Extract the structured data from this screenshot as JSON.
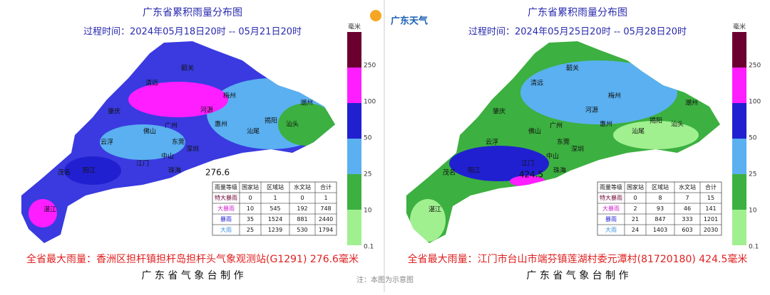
{
  "logo": "广东天气",
  "note": "注：本图为示意图",
  "panels": [
    {
      "title": "广东省累积雨量分布图",
      "period": "过程时间：2024年05月18日20时  -- 05月21日20时",
      "unit": "毫米",
      "legend": [
        "250",
        "100",
        "50",
        "25",
        "10",
        "0.1"
      ],
      "table": {
        "header": [
          "雨量等级",
          "国家站",
          "区域站",
          "水文站",
          "合计"
        ],
        "rows": [
          [
            "特大暴雨",
            "0",
            "1",
            "0",
            "1"
          ],
          [
            "大暴雨",
            "10",
            "545",
            "192",
            "748"
          ],
          [
            "暴雨",
            "35",
            "1524",
            "881",
            "2440"
          ],
          [
            "大雨",
            "25",
            "1239",
            "530",
            "1794"
          ]
        ]
      },
      "max_label": "276.6",
      "max_text": "全省最大雨量：香洲区担杆镇担杆岛担杆头气象观测站(G1291) 276.6毫米",
      "footer": "广 东 省 气 象 台 制 作",
      "cities": [
        "韶关",
        "清远",
        "梅州",
        "河源",
        "潮州",
        "肇庆",
        "广州",
        "惠州",
        "揭阳",
        "汕头",
        "云浮",
        "佛山",
        "东莞",
        "汕尾",
        "深圳",
        "江门",
        "中山",
        "珠海",
        "阳江",
        "茂名",
        "湛江"
      ]
    },
    {
      "title": "广东省累积雨量分布图",
      "period": "过程时间：2024年05月25日20时  -- 05月28日20时",
      "unit": "毫米",
      "legend": [
        "250",
        "100",
        "50",
        "25",
        "10",
        "0.1"
      ],
      "table": {
        "header": [
          "雨量等级",
          "国家站",
          "区域站",
          "水文站",
          "合计"
        ],
        "rows": [
          [
            "特大暴雨",
            "0",
            "8",
            "7",
            "15"
          ],
          [
            "大暴雨",
            "2",
            "93",
            "46",
            "141"
          ],
          [
            "暴雨",
            "21",
            "847",
            "333",
            "1201"
          ],
          [
            "大雨",
            "24",
            "1403",
            "603",
            "2030"
          ]
        ]
      },
      "max_label": "424.5",
      "max_text": "全省最大雨量：江门市台山市端芬镇莲湖村委元潭村(81720180) 424.5毫米",
      "footer": "广 东 省 气 象 台 制 作",
      "cities": [
        "韶关",
        "清远",
        "梅州",
        "河源",
        "潮州",
        "肇庆",
        "广州",
        "惠州",
        "揭阳",
        "汕头",
        "云浮",
        "佛山",
        "东莞",
        "汕尾",
        "深圳",
        "江门",
        "中山",
        "珠海",
        "阳江",
        "茂名",
        "湛江"
      ]
    }
  ]
}
